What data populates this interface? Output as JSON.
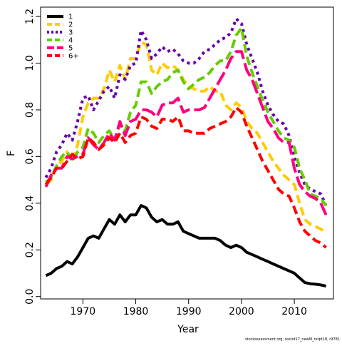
{
  "chart_data": {
    "type": "line",
    "xlabel": "Year",
    "ylabel": "F",
    "xlim": [
      1962,
      2017.4
    ],
    "ylim": [
      -0.01,
      1.24
    ],
    "xticks": [
      1970,
      1980,
      1990,
      2000,
      2010
    ],
    "yticks": [
      "0.0",
      "0.2",
      "0.4",
      "0.6",
      "0.8",
      "1.0",
      "1.2"
    ],
    "legend_position": "top-left",
    "grid": false,
    "footnote": "stockassessment.org, nscod17_newM_retpt18, r9781",
    "x": [
      1963,
      1964,
      1965,
      1966,
      1967,
      1968,
      1969,
      1970,
      1971,
      1972,
      1973,
      1974,
      1975,
      1976,
      1977,
      1978,
      1979,
      1980,
      1981,
      1982,
      1983,
      1984,
      1985,
      1986,
      1987,
      1988,
      1989,
      1990,
      1991,
      1992,
      1993,
      1994,
      1995,
      1996,
      1997,
      1998,
      1999,
      2000,
      2001,
      2002,
      2003,
      2004,
      2005,
      2006,
      2007,
      2008,
      2009,
      2010,
      2011,
      2012,
      2013,
      2014,
      2015,
      2016
    ],
    "series": [
      {
        "name": "1",
        "color": "#000000",
        "dash": "solid",
        "values": [
          0.09,
          0.1,
          0.12,
          0.13,
          0.15,
          0.14,
          0.17,
          0.21,
          0.25,
          0.26,
          0.25,
          0.29,
          0.33,
          0.31,
          0.35,
          0.32,
          0.35,
          0.35,
          0.39,
          0.38,
          0.34,
          0.32,
          0.33,
          0.31,
          0.31,
          0.32,
          0.28,
          0.27,
          0.26,
          0.25,
          0.25,
          0.25,
          0.25,
          0.24,
          0.22,
          0.21,
          0.22,
          0.21,
          0.19,
          0.18,
          0.17,
          0.16,
          0.15,
          0.14,
          0.13,
          0.12,
          0.11,
          0.1,
          0.08,
          0.06,
          0.055,
          0.053,
          0.05,
          0.045
        ]
      },
      {
        "name": "2",
        "color": "#ffcc00",
        "dash": "dash",
        "values": [
          0.48,
          0.5,
          0.56,
          0.58,
          0.62,
          0.58,
          0.65,
          0.77,
          0.83,
          0.85,
          0.85,
          0.89,
          0.97,
          0.92,
          0.99,
          0.93,
          1.02,
          1.02,
          1.09,
          1.08,
          0.97,
          0.95,
          1.0,
          0.98,
          0.99,
          0.97,
          0.93,
          0.9,
          0.89,
          0.88,
          0.88,
          0.9,
          0.88,
          0.88,
          0.82,
          0.8,
          0.83,
          0.81,
          0.75,
          0.72,
          0.7,
          0.66,
          0.62,
          0.58,
          0.55,
          0.52,
          0.5,
          0.48,
          0.4,
          0.33,
          0.31,
          0.3,
          0.29,
          0.27
        ]
      },
      {
        "name": "3",
        "color": "#6600aa",
        "dash": "dot",
        "values": [
          0.51,
          0.55,
          0.62,
          0.65,
          0.7,
          0.67,
          0.75,
          0.85,
          0.86,
          0.8,
          0.84,
          0.88,
          0.9,
          0.85,
          0.95,
          0.93,
          0.99,
          1.0,
          1.14,
          1.1,
          1.02,
          1.04,
          1.07,
          1.05,
          1.06,
          1.04,
          1.01,
          1.0,
          1.0,
          1.02,
          1.05,
          1.06,
          1.08,
          1.1,
          1.11,
          1.13,
          1.19,
          1.17,
          1.08,
          1.02,
          0.96,
          0.88,
          0.82,
          0.78,
          0.75,
          0.74,
          0.69,
          0.6,
          0.53,
          0.48,
          0.46,
          0.45,
          0.44,
          0.39
        ]
      },
      {
        "name": "4",
        "color": "#66cc00",
        "dash": "dash",
        "values": [
          0.49,
          0.51,
          0.56,
          0.6,
          0.62,
          0.58,
          0.62,
          0.64,
          0.72,
          0.7,
          0.66,
          0.69,
          0.71,
          0.67,
          0.74,
          0.71,
          0.79,
          0.82,
          0.92,
          0.92,
          0.87,
          0.9,
          0.92,
          0.93,
          0.96,
          0.97,
          0.92,
          0.89,
          0.91,
          0.93,
          0.94,
          0.96,
          0.99,
          1.01,
          1.01,
          1.05,
          1.12,
          1.15,
          1.03,
          0.96,
          0.9,
          0.84,
          0.79,
          0.75,
          0.71,
          0.68,
          0.67,
          0.64,
          0.55,
          0.5,
          0.44,
          0.43,
          0.42,
          0.39
        ]
      },
      {
        "name": "5",
        "color": "#ff0080",
        "dash": "longdash",
        "values": [
          0.47,
          0.52,
          0.55,
          0.55,
          0.6,
          0.59,
          0.6,
          0.61,
          0.68,
          0.65,
          0.63,
          0.66,
          0.7,
          0.67,
          0.75,
          0.69,
          0.75,
          0.76,
          0.8,
          0.8,
          0.79,
          0.77,
          0.82,
          0.83,
          0.83,
          0.85,
          0.79,
          0.8,
          0.8,
          0.8,
          0.81,
          0.85,
          0.89,
          0.93,
          0.97,
          1.02,
          1.05,
          1.05,
          0.97,
          0.93,
          0.87,
          0.81,
          0.75,
          0.72,
          0.68,
          0.66,
          0.66,
          0.55,
          0.48,
          0.45,
          0.43,
          0.42,
          0.4,
          0.35
        ]
      },
      {
        "name": "6+",
        "color": "#ff0000",
        "dash": "dash",
        "values": [
          0.48,
          0.51,
          0.55,
          0.55,
          0.58,
          0.61,
          0.59,
          0.6,
          0.68,
          0.66,
          0.63,
          0.65,
          0.68,
          0.66,
          0.7,
          0.66,
          0.69,
          0.7,
          0.77,
          0.76,
          0.73,
          0.72,
          0.76,
          0.76,
          0.75,
          0.77,
          0.71,
          0.71,
          0.7,
          0.7,
          0.7,
          0.72,
          0.73,
          0.74,
          0.75,
          0.77,
          0.81,
          0.79,
          0.73,
          0.68,
          0.63,
          0.58,
          0.54,
          0.5,
          0.46,
          0.44,
          0.43,
          0.38,
          0.32,
          0.28,
          0.26,
          0.24,
          0.23,
          0.21
        ]
      }
    ]
  }
}
